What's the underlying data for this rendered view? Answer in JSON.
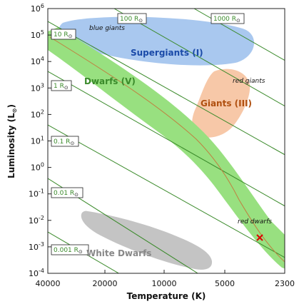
{
  "axes": {
    "x_label": "Temperature (K)",
    "y_label": "Luminosity (L",
    "y_label_symbol": "⊙",
    "y_label_close": ")",
    "x_ticks": [
      "40000",
      "20000",
      "10000",
      "5000",
      "2300"
    ],
    "y_tick_base": "10",
    "y_tick_exponents": [
      "6",
      "5",
      "4",
      "3",
      "2",
      "1",
      "0",
      "-1",
      "-2",
      "-3",
      "-4"
    ]
  },
  "radius_lines": [
    {
      "label": "1000 R",
      "symbol": "⊙"
    },
    {
      "label": "100 R",
      "symbol": "⊙"
    },
    {
      "label": "10 R",
      "symbol": "⊙"
    },
    {
      "label": "1 R",
      "symbol": "⊙"
    },
    {
      "label": "0.1 R",
      "symbol": "⊙"
    },
    {
      "label": "0.01 R",
      "symbol": "⊙"
    },
    {
      "label": "0.001 R",
      "symbol": "⊙"
    }
  ],
  "regions": {
    "supergiants": "Supergiants (I)",
    "blue_giants": "blue giants",
    "dwarfs": "Dwarfs (V)",
    "giants": "Giants (III)",
    "red_giants": "red giants",
    "red_dwarfs": "red dwarfs",
    "white_dwarfs": "White Dwarfs"
  },
  "colors": {
    "supergiants": "#a9c8ef",
    "supergiants_text": "#1a4aa8",
    "giants": "#f7c8a8",
    "giants_text": "#b05010",
    "dwarfs": "#98e080",
    "dwarfs_text": "#3a8a2a",
    "white_dwarfs": "#c4c4c4",
    "white_dwarfs_text": "#888888",
    "radius_line": "#3a8a2a",
    "track": "#c08040",
    "marker": "#dd0000"
  },
  "marker_icon": "x-mark-icon"
}
